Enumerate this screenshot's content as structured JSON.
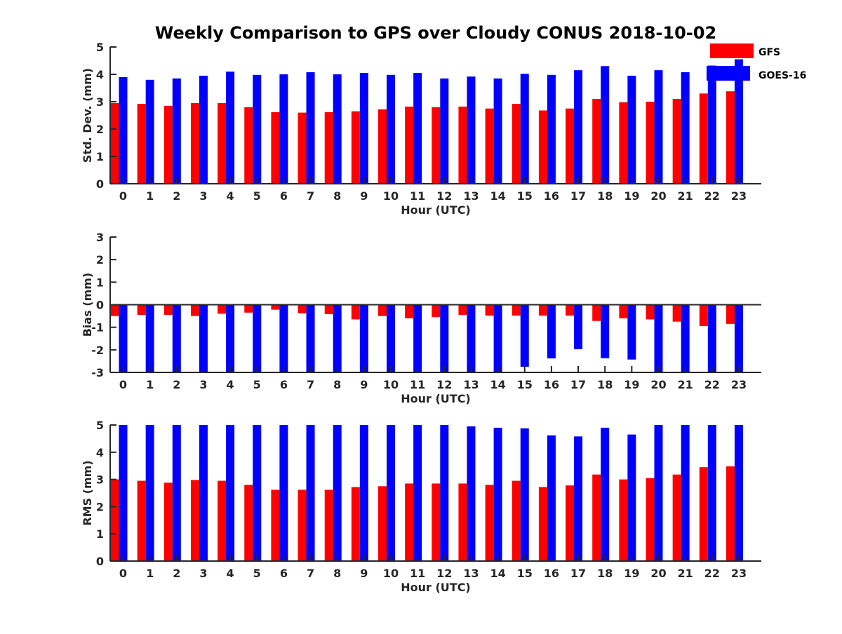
{
  "title": "Weekly Comparison to GPS over Cloudy CONUS 2018-10-02",
  "legend": [
    {
      "name": "GFS",
      "color": "#ff0000"
    },
    {
      "name": "GOES-16",
      "color": "#0000ff"
    }
  ],
  "chart_data": [
    {
      "type": "bar",
      "xlabel": "Hour (UTC)",
      "ylabel": "Std. Dev. (mm)",
      "ylim": [
        0,
        5
      ],
      "yticks": [
        "0",
        "1",
        "2",
        "3",
        "4",
        "5"
      ],
      "grid": false,
      "legend_position": "top-right",
      "categories": [
        "0",
        "1",
        "2",
        "3",
        "4",
        "5",
        "6",
        "7",
        "8",
        "9",
        "10",
        "11",
        "12",
        "13",
        "14",
        "15",
        "16",
        "17",
        "18",
        "19",
        "20",
        "21",
        "22",
        "23"
      ],
      "series": [
        {
          "name": "GFS",
          "color": "#ff0000",
          "values": [
            2.95,
            2.92,
            2.85,
            2.95,
            2.95,
            2.8,
            2.62,
            2.6,
            2.62,
            2.65,
            2.72,
            2.82,
            2.8,
            2.82,
            2.75,
            2.92,
            2.68,
            2.75,
            3.1,
            2.98,
            3.0,
            3.1,
            3.3,
            3.38
          ]
        },
        {
          "name": "GOES-16",
          "color": "#0000ff",
          "values": [
            3.9,
            3.8,
            3.85,
            3.95,
            4.1,
            3.98,
            4.0,
            4.08,
            4.0,
            4.05,
            3.98,
            4.05,
            3.85,
            3.92,
            3.85,
            4.02,
            3.98,
            4.15,
            4.3,
            3.95,
            4.15,
            4.08,
            4.32,
            4.55
          ]
        }
      ]
    },
    {
      "type": "bar",
      "xlabel": "Hour (UTC)",
      "ylabel": "Bias (mm)",
      "ylim": [
        -3,
        3
      ],
      "yticks": [
        "-3",
        "-2",
        "-1",
        "0",
        "1",
        "2",
        "3"
      ],
      "grid": false,
      "categories": [
        "0",
        "1",
        "2",
        "3",
        "4",
        "5",
        "6",
        "7",
        "8",
        "9",
        "10",
        "11",
        "12",
        "13",
        "14",
        "15",
        "16",
        "17",
        "18",
        "19",
        "20",
        "21",
        "22",
        "23"
      ],
      "series": [
        {
          "name": "GFS",
          "color": "#ff0000",
          "values": [
            -0.5,
            -0.45,
            -0.45,
            -0.5,
            -0.4,
            -0.35,
            -0.22,
            -0.38,
            -0.42,
            -0.65,
            -0.5,
            -0.6,
            -0.55,
            -0.45,
            -0.48,
            -0.48,
            -0.48,
            -0.48,
            -0.72,
            -0.6,
            -0.65,
            -0.75,
            -0.95,
            -0.85
          ]
        },
        {
          "name": "GOES-16",
          "color": "#0000ff",
          "values": [
            -3.0,
            -3.0,
            -3.0,
            -3.0,
            -3.0,
            -3.0,
            -3.0,
            -3.0,
            -3.0,
            -3.0,
            -3.0,
            -3.0,
            -3.0,
            -3.0,
            -3.0,
            -2.75,
            -2.38,
            -1.97,
            -2.37,
            -2.43,
            -3.0,
            -3.0,
            -3.0,
            -3.0
          ]
        }
      ]
    },
    {
      "type": "bar",
      "xlabel": "Hour (UTC)",
      "ylabel": "RMS (mm)",
      "ylim": [
        0,
        5
      ],
      "yticks": [
        "0",
        "1",
        "2",
        "3",
        "4",
        "5"
      ],
      "grid": false,
      "categories": [
        "0",
        "1",
        "2",
        "3",
        "4",
        "5",
        "6",
        "7",
        "8",
        "9",
        "10",
        "11",
        "12",
        "13",
        "14",
        "15",
        "16",
        "17",
        "18",
        "19",
        "20",
        "21",
        "22",
        "23"
      ],
      "series": [
        {
          "name": "GFS",
          "color": "#ff0000",
          "values": [
            3.0,
            2.95,
            2.88,
            2.98,
            2.95,
            2.8,
            2.62,
            2.62,
            2.62,
            2.72,
            2.75,
            2.85,
            2.85,
            2.85,
            2.8,
            2.95,
            2.72,
            2.78,
            3.18,
            3.0,
            3.05,
            3.18,
            3.45,
            3.48
          ]
        },
        {
          "name": "GOES-16",
          "color": "#0000ff",
          "values": [
            5.0,
            5.0,
            5.0,
            5.0,
            5.0,
            5.0,
            5.0,
            5.0,
            5.0,
            5.0,
            5.0,
            5.0,
            5.0,
            4.95,
            4.9,
            4.88,
            4.62,
            4.58,
            4.9,
            4.65,
            5.0,
            5.0,
            5.0,
            5.0
          ]
        }
      ]
    }
  ]
}
